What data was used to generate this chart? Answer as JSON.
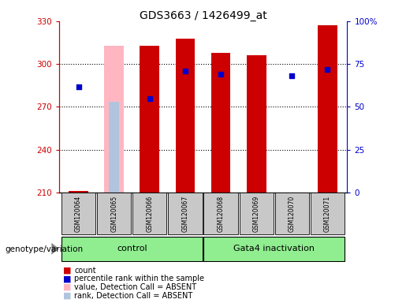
{
  "title": "GDS3663 / 1426499_at",
  "samples": [
    "GSM120064",
    "GSM120065",
    "GSM120066",
    "GSM120067",
    "GSM120068",
    "GSM120069",
    "GSM120070",
    "GSM120071"
  ],
  "ylim_left": [
    210,
    330
  ],
  "ylim_right": [
    0,
    100
  ],
  "yticks_left": [
    210,
    240,
    270,
    300,
    330
  ],
  "yticks_right": [
    0,
    25,
    50,
    75,
    100
  ],
  "red_values": [
    211,
    null,
    313,
    318,
    308,
    306,
    null,
    327
  ],
  "blue_values": [
    284,
    null,
    276,
    295,
    293,
    null,
    292,
    296
  ],
  "pink_bar_values": [
    null,
    313,
    null,
    null,
    null,
    null,
    null,
    null
  ],
  "lightblue_bar_values": [
    null,
    53,
    null,
    null,
    null,
    null,
    null,
    null
  ],
  "bar_width": 0.55,
  "dot_size": 25,
  "red_color": "#CC0000",
  "blue_color": "#0000CC",
  "absent_bar_pink": "#FFB6C1",
  "absent_bar_lightblue": "#B0C4DE",
  "bg_color": "#FFFFFF",
  "left_axis_color": "#CC0000",
  "right_axis_color": "#0000CC",
  "group_color": "#90EE90",
  "label_bg": "#C8C8C8"
}
